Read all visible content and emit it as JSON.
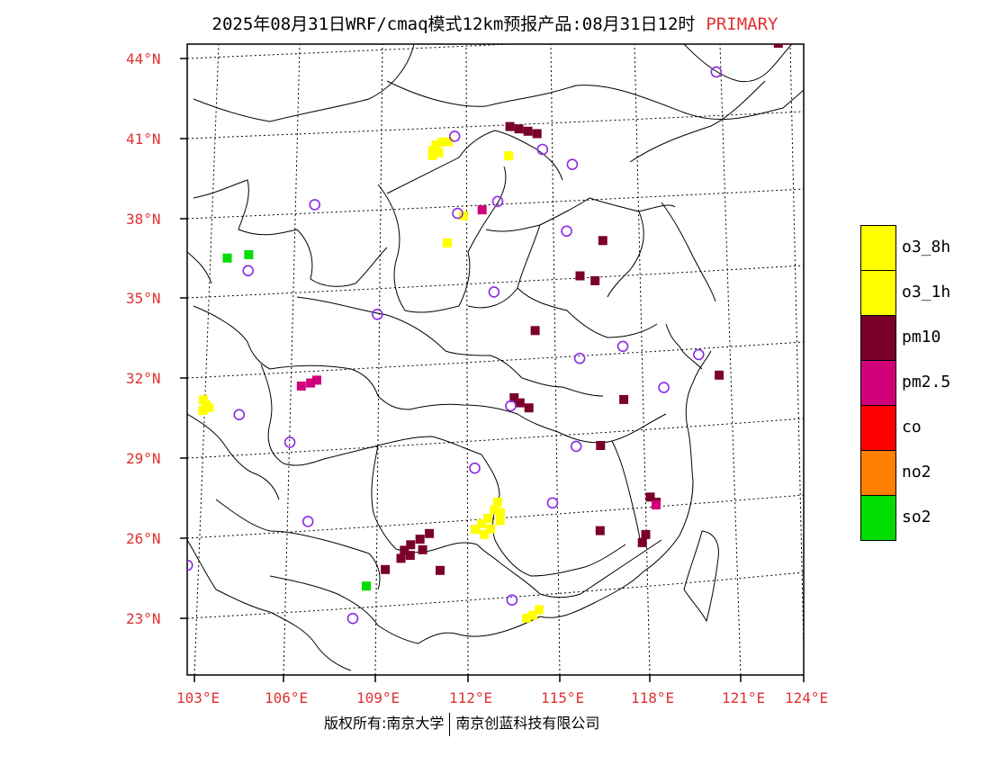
{
  "title": {
    "main": "2025年08月31日WRF/cmaq模式12km预报产品:08月31日12时",
    "tag": "PRIMARY"
  },
  "axes": {
    "lat_labels": [
      "44°N",
      "41°N",
      "38°N",
      "35°N",
      "32°N",
      "29°N",
      "26°N",
      "23°N"
    ],
    "lon_labels": [
      "103°E",
      "106°E",
      "109°E",
      "112°E",
      "115°E",
      "118°E",
      "121°E",
      "124°E"
    ]
  },
  "legend": {
    "items": [
      {
        "label": "o3_8h",
        "color": "#ffff00"
      },
      {
        "label": "o3_1h",
        "color": "#ffff00"
      },
      {
        "label": "pm10",
        "color": "#7a0028"
      },
      {
        "label": "pm2.5",
        "color": "#d0007a"
      },
      {
        "label": "co",
        "color": "#ff0000"
      },
      {
        "label": "no2",
        "color": "#ff7f00"
      },
      {
        "label": "so2",
        "color": "#00dd00"
      }
    ]
  },
  "copyright": {
    "left": "版权所有:南京大学",
    "right": "南京创蓝科技有限公司"
  },
  "colors": {
    "label_red": "#e03030",
    "station_circle": "#8a2be2"
  },
  "pollution_cells": [
    {
      "type": "o3_8h",
      "lon": 110.3,
      "lat": 40.5
    },
    {
      "type": "o3_8h",
      "lon": 110.5,
      "lat": 40.6
    },
    {
      "type": "o3_8h",
      "lon": 110.7,
      "lat": 40.6
    },
    {
      "type": "o3_8h",
      "lon": 110.2,
      "lat": 40.3
    },
    {
      "type": "o3_8h",
      "lon": 110.4,
      "lat": 40.2
    },
    {
      "type": "o3_8h",
      "lon": 110.2,
      "lat": 40.1
    },
    {
      "type": "o3_8h",
      "lon": 103.0,
      "lat": 31.2
    },
    {
      "type": "o3_8h",
      "lon": 103.1,
      "lat": 31.0
    },
    {
      "type": "o3_8h",
      "lon": 103.0,
      "lat": 30.8
    },
    {
      "type": "o3_8h",
      "lon": 103.2,
      "lat": 30.9
    },
    {
      "type": "o3_8h",
      "lon": 112.8,
      "lat": 27.0
    },
    {
      "type": "o3_8h",
      "lon": 112.7,
      "lat": 26.7
    },
    {
      "type": "o3_8h",
      "lon": 112.5,
      "lat": 26.4
    },
    {
      "type": "o3_8h",
      "lon": 112.3,
      "lat": 26.2
    },
    {
      "type": "o3_8h",
      "lon": 112.1,
      "lat": 26.0
    },
    {
      "type": "o3_8h",
      "lon": 112.9,
      "lat": 26.6
    },
    {
      "type": "o3_8h",
      "lon": 112.9,
      "lat": 26.3
    },
    {
      "type": "o3_8h",
      "lon": 112.6,
      "lat": 26.0
    },
    {
      "type": "o3_8h",
      "lon": 112.4,
      "lat": 25.8
    },
    {
      "type": "o3_8h",
      "lon": 114.1,
      "lat": 22.7
    },
    {
      "type": "o3_8h",
      "lon": 114.3,
      "lat": 22.9
    },
    {
      "type": "o3_8h",
      "lon": 113.9,
      "lat": 22.6
    },
    {
      "type": "o3_8h",
      "lon": 112.7,
      "lat": 40.0
    },
    {
      "type": "o3_8h",
      "lon": 111.3,
      "lat": 37.8
    },
    {
      "type": "o3_8h",
      "lon": 110.8,
      "lat": 36.8
    },
    {
      "type": "pm10",
      "lon": 112.7,
      "lat": 41.1
    },
    {
      "type": "pm10",
      "lon": 113.0,
      "lat": 41.0
    },
    {
      "type": "pm10",
      "lon": 113.3,
      "lat": 40.9
    },
    {
      "type": "pm10",
      "lon": 113.6,
      "lat": 40.8
    },
    {
      "type": "pm10",
      "lon": 121.4,
      "lat": 43.9
    },
    {
      "type": "pm10",
      "lon": 121.7,
      "lat": 44.0
    },
    {
      "type": "pm10",
      "lon": 109.8,
      "lat": 25.3
    },
    {
      "type": "pm10",
      "lon": 110.0,
      "lat": 25.5
    },
    {
      "type": "pm10",
      "lon": 110.3,
      "lat": 25.7
    },
    {
      "type": "pm10",
      "lon": 110.6,
      "lat": 25.9
    },
    {
      "type": "pm10",
      "lon": 109.7,
      "lat": 25.0
    },
    {
      "type": "pm10",
      "lon": 110.0,
      "lat": 25.1
    },
    {
      "type": "pm10",
      "lon": 110.4,
      "lat": 25.3
    },
    {
      "type": "pm10",
      "lon": 109.2,
      "lat": 24.6
    },
    {
      "type": "pm10",
      "lon": 111.0,
      "lat": 24.5
    },
    {
      "type": "pm10",
      "lon": 113.2,
      "lat": 30.9
    },
    {
      "type": "pm10",
      "lon": 113.4,
      "lat": 30.7
    },
    {
      "type": "pm10",
      "lon": 113.7,
      "lat": 30.5
    },
    {
      "type": "pm10",
      "lon": 117.8,
      "lat": 27.0
    },
    {
      "type": "pm10",
      "lon": 118.0,
      "lat": 26.8
    },
    {
      "type": "pm10",
      "lon": 117.7,
      "lat": 25.6
    },
    {
      "type": "pm10",
      "lon": 117.6,
      "lat": 25.3
    },
    {
      "type": "pm10",
      "lon": 116.2,
      "lat": 25.8
    },
    {
      "type": "pm10",
      "lon": 115.2,
      "lat": 35.4
    },
    {
      "type": "pm10",
      "lon": 115.7,
      "lat": 35.2
    },
    {
      "type": "pm10",
      "lon": 115.9,
      "lat": 36.7
    },
    {
      "type": "pm10",
      "lon": 119.9,
      "lat": 31.5
    },
    {
      "type": "pm10",
      "lon": 116.8,
      "lat": 30.7
    },
    {
      "type": "pm10",
      "lon": 116.1,
      "lat": 29.0
    },
    {
      "type": "pm10",
      "lon": 113.8,
      "lat": 33.4
    },
    {
      "type": "pm2.5",
      "lon": 106.7,
      "lat": 31.8
    },
    {
      "type": "pm2.5",
      "lon": 106.5,
      "lat": 31.7
    },
    {
      "type": "pm2.5",
      "lon": 106.2,
      "lat": 31.6
    },
    {
      "type": "pm2.5",
      "lon": 118.0,
      "lat": 26.7
    },
    {
      "type": "pm2.5",
      "lon": 111.9,
      "lat": 38.0
    },
    {
      "type": "so2",
      "lon": 108.6,
      "lat": 24.0
    },
    {
      "type": "so2",
      "lon": 104.3,
      "lat": 36.6
    },
    {
      "type": "so2",
      "lon": 103.6,
      "lat": 36.5
    }
  ],
  "stations": [
    {
      "lon": 110.9,
      "lat": 40.8
    },
    {
      "lon": 113.8,
      "lat": 40.2
    },
    {
      "lon": 114.8,
      "lat": 39.6
    },
    {
      "lon": 119.4,
      "lat": 42.9
    },
    {
      "lon": 106.4,
      "lat": 38.4
    },
    {
      "lon": 112.4,
      "lat": 38.3
    },
    {
      "lon": 111.1,
      "lat": 37.9
    },
    {
      "lon": 114.7,
      "lat": 37.1
    },
    {
      "lon": 104.3,
      "lat": 36.0
    },
    {
      "lon": 112.4,
      "lat": 34.9
    },
    {
      "lon": 108.6,
      "lat": 34.2
    },
    {
      "lon": 116.7,
      "lat": 32.7
    },
    {
      "lon": 115.3,
      "lat": 32.3
    },
    {
      "lon": 119.2,
      "lat": 32.3
    },
    {
      "lon": 118.1,
      "lat": 31.1
    },
    {
      "lon": 113.1,
      "lat": 30.6
    },
    {
      "lon": 104.2,
      "lat": 30.6
    },
    {
      "lon": 105.9,
      "lat": 29.5
    },
    {
      "lon": 115.3,
      "lat": 29.0
    },
    {
      "lon": 112.0,
      "lat": 28.3
    },
    {
      "lon": 106.6,
      "lat": 26.5
    },
    {
      "lon": 102.7,
      "lat": 25.0
    },
    {
      "lon": 114.6,
      "lat": 26.9
    },
    {
      "lon": 113.4,
      "lat": 23.3
    },
    {
      "lon": 108.2,
      "lat": 22.8
    }
  ]
}
